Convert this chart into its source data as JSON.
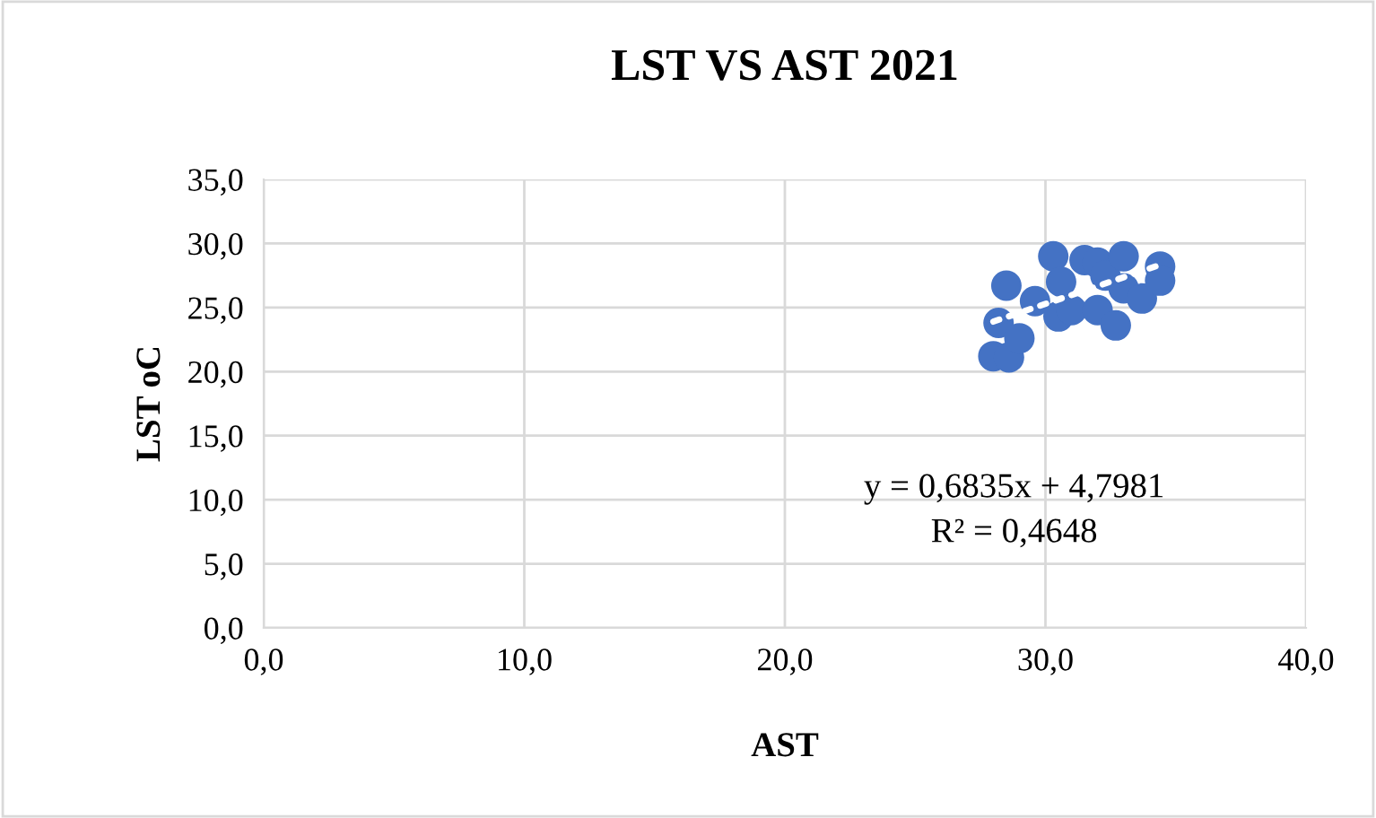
{
  "chart_data": {
    "type": "scatter",
    "title": "LST VS AST 2021",
    "xlabel": "AST",
    "ylabel": "LST oC",
    "xlim": [
      0,
      40
    ],
    "ylim": [
      0,
      35
    ],
    "xticks": [
      {
        "value": 0,
        "label": "0,0"
      },
      {
        "value": 10,
        "label": "10,0"
      },
      {
        "value": 20,
        "label": "20,0"
      },
      {
        "value": 30,
        "label": "30,0"
      },
      {
        "value": 40,
        "label": "40,0"
      }
    ],
    "yticks": [
      {
        "value": 0,
        "label": "0,0"
      },
      {
        "value": 5,
        "label": "5,0"
      },
      {
        "value": 10,
        "label": "10,0"
      },
      {
        "value": 15,
        "label": "15,0"
      },
      {
        "value": 20,
        "label": "20,0"
      },
      {
        "value": 25,
        "label": "25,0"
      },
      {
        "value": 30,
        "label": "30,0"
      },
      {
        "value": 35,
        "label": "35,0"
      }
    ],
    "grid": true,
    "legend": false,
    "marker": "circle",
    "series": [
      {
        "color": "#4472c4",
        "x": [
          28.0,
          28.6,
          28.5,
          28.2,
          29.0,
          30.3,
          30.5,
          31.0,
          31.5,
          32.0,
          32.0,
          32.3,
          32.7,
          33.0,
          33.0,
          33.7,
          34.4,
          30.6,
          29.6,
          34.4
        ],
        "values": [
          21.2,
          21.1,
          26.7,
          23.8,
          22.6,
          29.0,
          24.3,
          24.8,
          28.7,
          28.5,
          24.8,
          27.5,
          23.6,
          29.0,
          26.5,
          25.7,
          28.2,
          27.0,
          25.5,
          27.1
        ]
      },
      {
        "type": "line",
        "color": "#ffffff",
        "line_style": "dotted",
        "marker": "none",
        "x": [
          28.0,
          34.5
        ],
        "values": [
          23.9,
          28.4
        ]
      }
    ],
    "annotations": [
      "y = 0,6835x + 4,7981",
      "R² = 0,4648"
    ]
  }
}
